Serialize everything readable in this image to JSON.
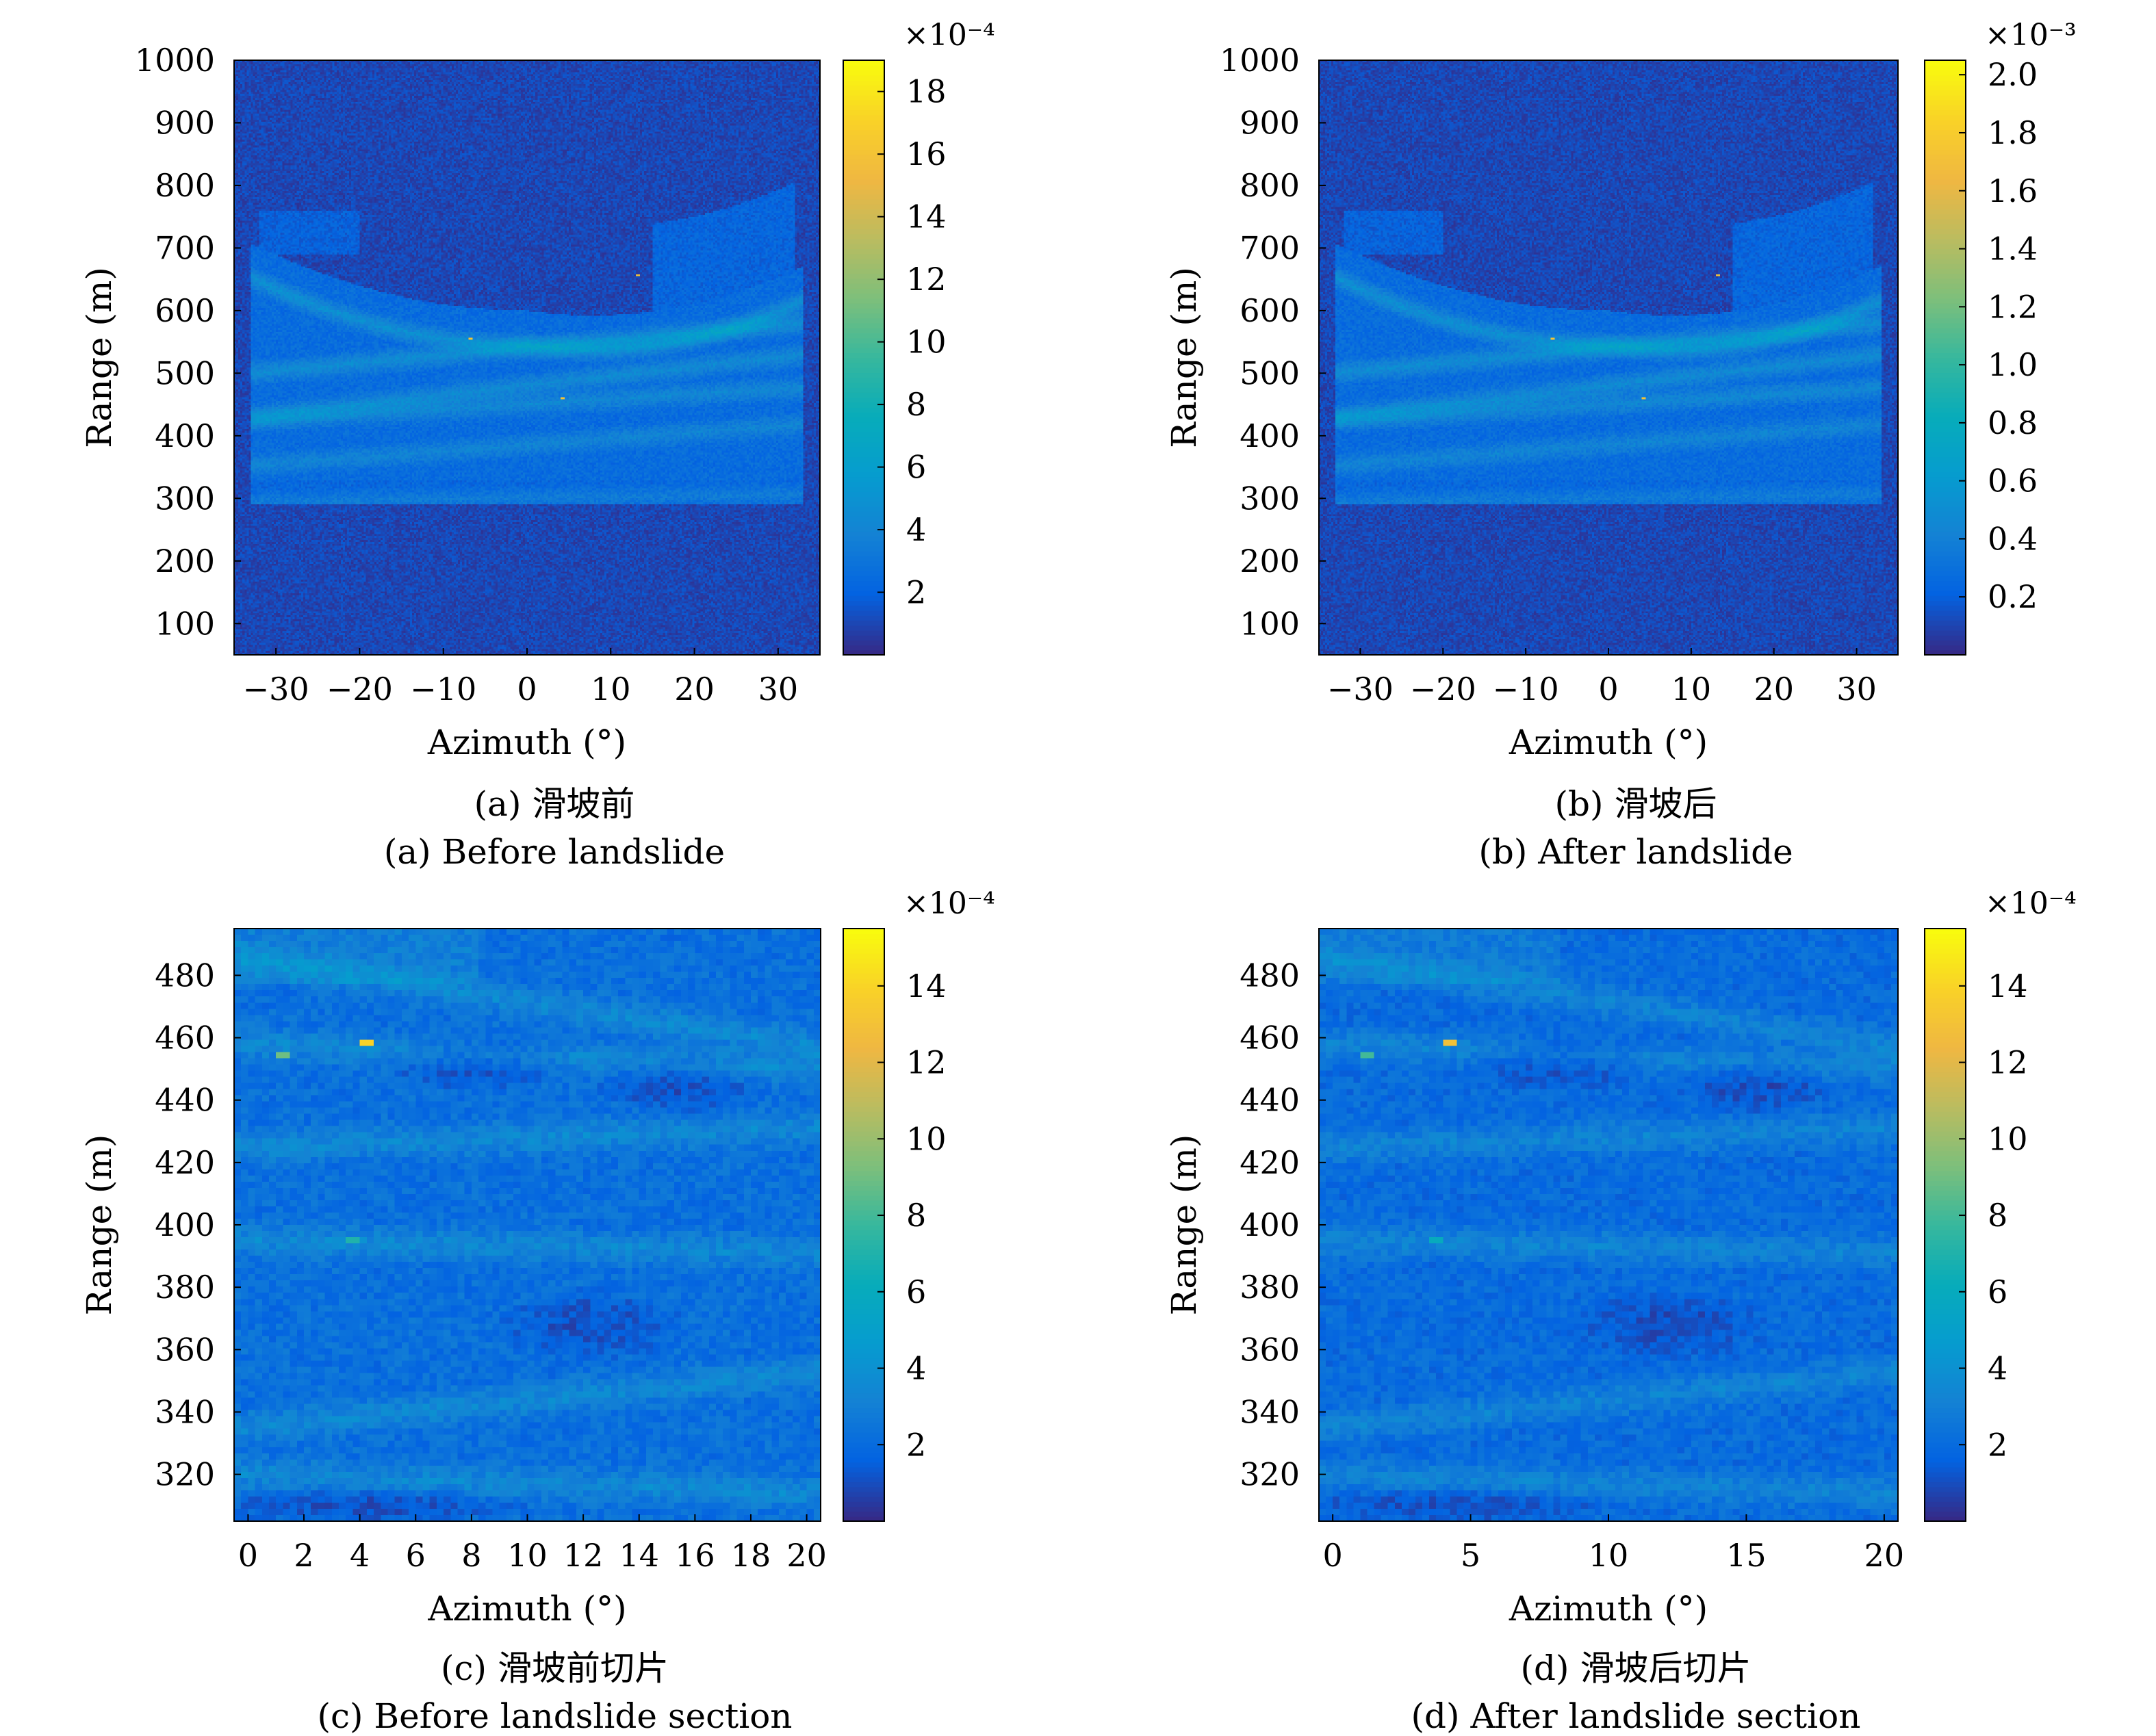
{
  "chart_data": [
    {
      "type": "heatmap",
      "panel": "a",
      "caption_cn": "(a) 滑坡前",
      "caption_en": "(a) Before landslide",
      "xlabel": "Azimuth (°)",
      "ylabel": "Range (m)",
      "xlim": [
        -35,
        35
      ],
      "ylim": [
        50,
        1000
      ],
      "xticks": [
        -30,
        -20,
        -10,
        0,
        10,
        20,
        30
      ],
      "xtick_labels": [
        "−30",
        "−20",
        "−10",
        "0",
        "10",
        "20",
        "30"
      ],
      "yticks": [
        100,
        200,
        300,
        400,
        500,
        600,
        700,
        800,
        900,
        1000
      ],
      "ytick_labels": [
        "100",
        "200",
        "300",
        "400",
        "500",
        "600",
        "700",
        "800",
        "900",
        "1000"
      ],
      "colorbar": {
        "min": 0,
        "max": 19,
        "ticks": [
          2,
          4,
          6,
          8,
          10,
          12,
          14,
          16,
          18
        ],
        "tick_labels": [
          "2",
          "4",
          "6",
          "8",
          "10",
          "12",
          "14",
          "16",
          "18"
        ],
        "exponent_label": "×10⁻⁴",
        "colormap": "parula"
      },
      "features": {
        "dark_region": "upper bowl (Range > ~600 m, center) and bottom strip (Range < ~300 m)",
        "bright_bands_range_m": [
          620,
          540,
          480,
          450,
          380,
          300
        ],
        "bright_points": [
          {
            "azimuth": 13,
            "range": 655
          },
          {
            "azimuth": -7,
            "range": 555
          },
          {
            "azimuth": 4,
            "range": 460
          }
        ]
      }
    },
    {
      "type": "heatmap",
      "panel": "b",
      "caption_cn": "(b) 滑坡后",
      "caption_en": "(b) After landslide",
      "xlabel": "Azimuth (°)",
      "ylabel": "Range (m)",
      "xlim": [
        -35,
        35
      ],
      "ylim": [
        50,
        1000
      ],
      "xticks": [
        -30,
        -20,
        -10,
        0,
        10,
        20,
        30
      ],
      "xtick_labels": [
        "−30",
        "−20",
        "−10",
        "0",
        "10",
        "20",
        "30"
      ],
      "yticks": [
        100,
        200,
        300,
        400,
        500,
        600,
        700,
        800,
        900,
        1000
      ],
      "ytick_labels": [
        "100",
        "200",
        "300",
        "400",
        "500",
        "600",
        "700",
        "800",
        "900",
        "1000"
      ],
      "colorbar": {
        "min": 0,
        "max": 2.05,
        "ticks": [
          0.2,
          0.4,
          0.6,
          0.8,
          1.0,
          1.2,
          1.4,
          1.6,
          1.8,
          2.0
        ],
        "tick_labels": [
          "0.2",
          "0.4",
          "0.6",
          "0.8",
          "1.0",
          "1.2",
          "1.4",
          "1.6",
          "1.8",
          "2.0"
        ],
        "exponent_label": "×10⁻³",
        "colormap": "parula"
      },
      "features": {
        "dark_region": "upper bowl (Range > ~600 m, center) and bottom strip (Range < ~300 m)",
        "bright_bands_range_m": [
          620,
          540,
          480,
          450,
          380,
          300
        ],
        "bright_points": [
          {
            "azimuth": 13,
            "range": 655
          },
          {
            "azimuth": -7,
            "range": 555
          },
          {
            "azimuth": 4,
            "range": 460
          }
        ]
      }
    },
    {
      "type": "heatmap",
      "panel": "c",
      "caption_cn": "(c) 滑坡前切片",
      "caption_en": "(c) Before landslide section",
      "xlabel": "Azimuth (°)",
      "ylabel": "Range (m)",
      "xlim": [
        -0.5,
        20.5
      ],
      "ylim": [
        305,
        495
      ],
      "xticks": [
        0,
        2,
        4,
        6,
        8,
        10,
        12,
        14,
        16,
        18,
        20
      ],
      "xtick_labels": [
        "0",
        "2",
        "4",
        "6",
        "8",
        "10",
        "12",
        "14",
        "16",
        "18",
        "20"
      ],
      "yticks": [
        320,
        340,
        360,
        380,
        400,
        420,
        440,
        460,
        480
      ],
      "ytick_labels": [
        "320",
        "340",
        "360",
        "380",
        "400",
        "420",
        "440",
        "460",
        "480"
      ],
      "colorbar": {
        "min": 0,
        "max": 15.5,
        "ticks": [
          2,
          4,
          6,
          8,
          10,
          12,
          14
        ],
        "tick_labels": [
          "2",
          "4",
          "6",
          "8",
          "10",
          "12",
          "14"
        ],
        "exponent_label": "×10⁻⁴",
        "colormap": "parula"
      },
      "features": {
        "bright_points": [
          {
            "azimuth": 4.2,
            "range": 459,
            "value": 14
          },
          {
            "azimuth": 1.2,
            "range": 455,
            "value": 9
          },
          {
            "azimuth": 3.5,
            "range": 395,
            "value": 7
          }
        ],
        "bright_bands_range_m": [
          485,
          458,
          425,
          395,
          335,
          320
        ],
        "dark_patches": [
          {
            "azimuth": 8,
            "range": 452
          },
          {
            "azimuth": 12,
            "range": 368
          }
        ]
      }
    },
    {
      "type": "heatmap",
      "panel": "d",
      "caption_cn": "(d) 滑坡后切片",
      "caption_en": "(d) After landslide section",
      "xlabel": "Azimuth (°)",
      "ylabel": "Range (m)",
      "xlim": [
        -0.5,
        20.5
      ],
      "ylim": [
        305,
        495
      ],
      "xticks": [
        0,
        5,
        10,
        15,
        20
      ],
      "xtick_labels": [
        "0",
        "5",
        "10",
        "15",
        "20"
      ],
      "yticks": [
        320,
        340,
        360,
        380,
        400,
        420,
        440,
        460,
        480
      ],
      "ytick_labels": [
        "320",
        "340",
        "360",
        "380",
        "400",
        "420",
        "440",
        "460",
        "480"
      ],
      "colorbar": {
        "min": 0,
        "max": 15.5,
        "ticks": [
          2,
          4,
          6,
          8,
          10,
          12,
          14
        ],
        "tick_labels": [
          "2",
          "4",
          "6",
          "8",
          "10",
          "12",
          "14"
        ],
        "exponent_label": "×10⁻⁴",
        "colormap": "parula"
      },
      "features": {
        "bright_points": [
          {
            "azimuth": 4.2,
            "range": 459,
            "value": 13
          },
          {
            "azimuth": 1.2,
            "range": 455,
            "value": 8
          },
          {
            "azimuth": 3.5,
            "range": 395,
            "value": 6
          }
        ],
        "bright_bands_range_m": [
          485,
          458,
          425,
          395,
          335,
          320
        ],
        "dark_patches": [
          {
            "azimuth": 8,
            "range": 452
          },
          {
            "azimuth": 12,
            "range": 368
          }
        ]
      }
    }
  ]
}
